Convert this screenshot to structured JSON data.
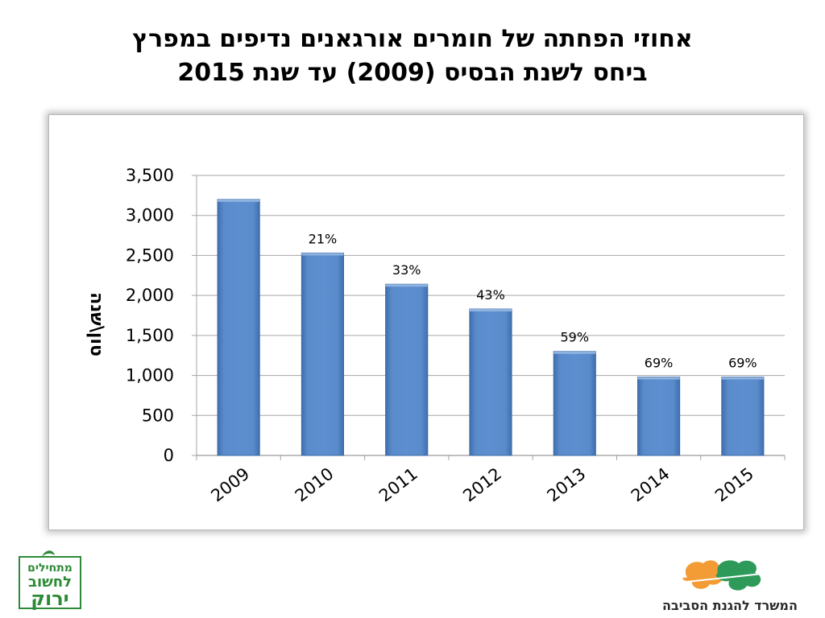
{
  "slide": {
    "title_line1": "אחוזי הפחתה של חומרים אורגאנים נדיפים במפרץ",
    "title_line2": "ביחס לשנת הבסיס (2009) עד שנת 2015"
  },
  "logos": {
    "left_text": [
      "מתחילים",
      "לחשוב",
      "ירוק"
    ],
    "right_text": "המשרד להגנת הסביבה"
  },
  "colors": {
    "bar": "#4f81bd",
    "bar_edge": "#3a6aa5",
    "grid": "#a6a6a6",
    "leaf_orange": "#f39c35",
    "leaf_green": "#2e9a5a",
    "logo_green": "#2d8a36"
  },
  "chart_data": {
    "type": "bar",
    "categories": [
      "2009",
      "2010",
      "2011",
      "2012",
      "2013",
      "2014",
      "2015"
    ],
    "values": [
      3200,
      2530,
      2140,
      1830,
      1300,
      980,
      980
    ],
    "data_labels": [
      "",
      "21%",
      "33%",
      "43%",
      "59%",
      "69%",
      "69%"
    ],
    "ylabel": "טון\\שנה",
    "ylim": [
      0,
      3500
    ],
    "yticks": [
      0,
      500,
      1000,
      1500,
      2000,
      2500,
      3000,
      3500
    ],
    "ytick_labels": [
      "0",
      "500",
      "1,000",
      "1,500",
      "2,000",
      "2,500",
      "3,000",
      "3,500"
    ],
    "grid": true,
    "legend": "none"
  }
}
